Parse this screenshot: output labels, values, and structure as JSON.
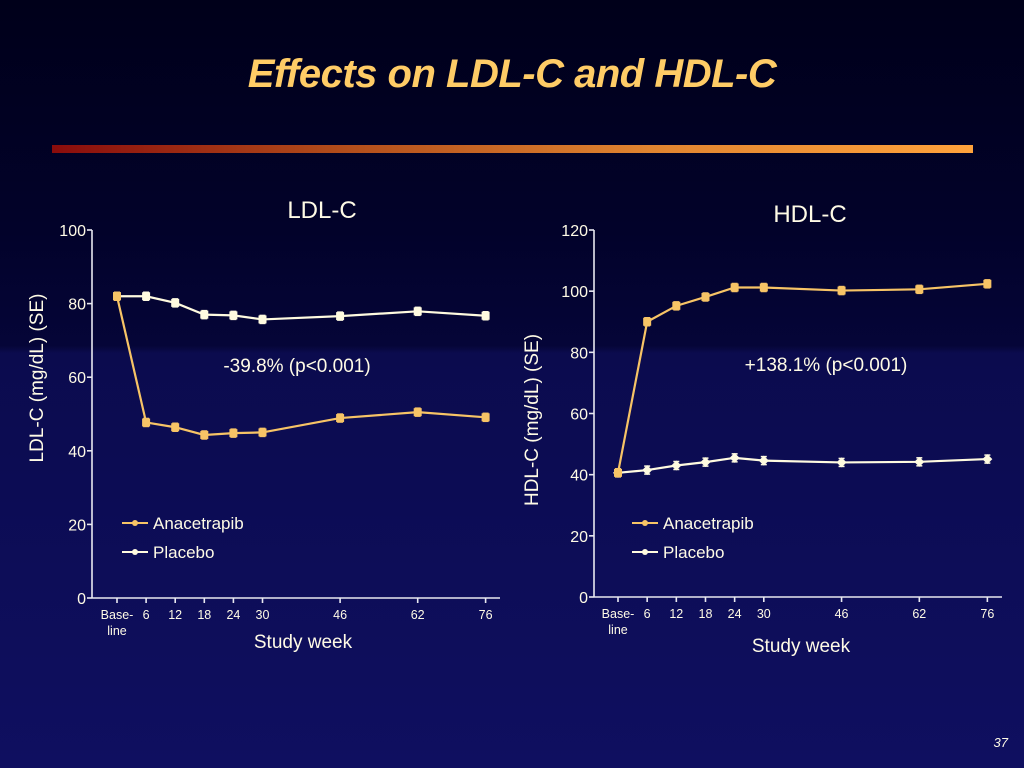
{
  "slide": {
    "title": "Effects on LDL-C and HDL-C",
    "page_number": "37"
  },
  "colors": {
    "anacetrapib": "#f7c466",
    "placebo": "#fffbe0",
    "title": "#ffcc66"
  },
  "chart_data": [
    {
      "type": "line",
      "title": "LDL-C",
      "xlabel": "Study week",
      "ylabel": "LDL-C (mg/dL) (SE)",
      "x": [
        0,
        6,
        12,
        18,
        24,
        30,
        46,
        62,
        76
      ],
      "x_tick_labels": [
        "Base-\nline",
        "6",
        "12",
        "18",
        "24",
        "30",
        "46",
        "62",
        "76"
      ],
      "ylim": [
        0,
        100
      ],
      "y_ticks": [
        0,
        20,
        40,
        60,
        80,
        100
      ],
      "grid": false,
      "legend": "lower-left",
      "annotation": "-39.8% (p<0.001)",
      "series": [
        {
          "name": "Anacetrapib",
          "color_key": "anacetrapib",
          "marker": "square",
          "values": [
            82.0,
            47.7,
            46.4,
            44.3,
            44.8,
            45.0,
            48.9,
            50.5,
            49.1
          ]
        },
        {
          "name": "Placebo",
          "color_key": "placebo",
          "marker": "square",
          "values": [
            82.0,
            82.0,
            80.2,
            77.0,
            76.8,
            75.7,
            76.6,
            77.9,
            76.7
          ]
        }
      ]
    },
    {
      "type": "line",
      "title": "HDL-C",
      "xlabel": "Study week",
      "ylabel": "HDL-C (mg/dL) (SE)",
      "x": [
        0,
        6,
        12,
        18,
        24,
        30,
        46,
        62,
        76
      ],
      "x_tick_labels": [
        "Base-\nline",
        "6",
        "12",
        "18",
        "24",
        "30",
        "46",
        "62",
        "76"
      ],
      "ylim": [
        0,
        120
      ],
      "y_ticks": [
        0,
        20,
        40,
        60,
        80,
        100,
        120
      ],
      "grid": false,
      "legend": "lower-left",
      "annotation": "+138.1% (p<0.001)",
      "series": [
        {
          "name": "Anacetrapib",
          "color_key": "anacetrapib",
          "marker": "square",
          "values": [
            40.6,
            90.0,
            95.2,
            98.1,
            101.2,
            101.2,
            100.2,
            100.6,
            102.4
          ]
        },
        {
          "name": "Placebo",
          "color_key": "placebo",
          "marker": "diamond",
          "values": [
            40.6,
            41.5,
            43.0,
            44.1,
            45.5,
            44.6,
            44.0,
            44.2,
            45.1
          ]
        }
      ]
    }
  ]
}
